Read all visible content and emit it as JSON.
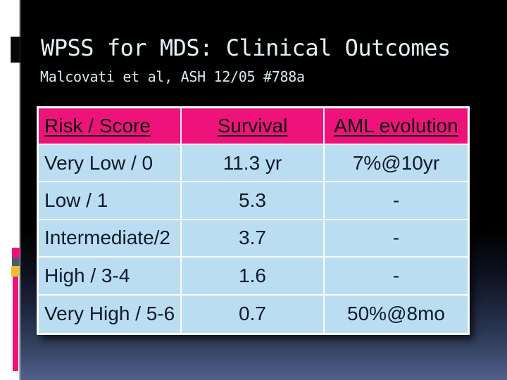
{
  "slide": {
    "title": "WPSS for MDS: Clinical Outcomes",
    "subtitle": "Malcovati et al, ASH 12/05 #788a"
  },
  "table": {
    "columns": [
      "Risk / Score",
      "Survival",
      "AML evolution"
    ],
    "rows": [
      [
        "Very Low / 0",
        "11.3 yr",
        "7%@10yr"
      ],
      [
        "Low / 1",
        "5.3",
        "-"
      ],
      [
        "Intermediate/2",
        "3.7",
        "-"
      ],
      [
        "High / 3-4",
        "1.6",
        "-"
      ],
      [
        "Very High / 5-6",
        "0.7",
        "50%@8mo"
      ]
    ]
  },
  "colors": {
    "header_pink": "#ee137b",
    "cell_blue": "#bbddf2",
    "accent_yellow": "#efbe2b",
    "accent_slate": "#4d5b68",
    "band_white": "#ffffff",
    "bg_top": "#000000",
    "bg_bottom": "#51618c",
    "title_text": "#e4f2f7",
    "body_text": "#0f1b2a"
  }
}
